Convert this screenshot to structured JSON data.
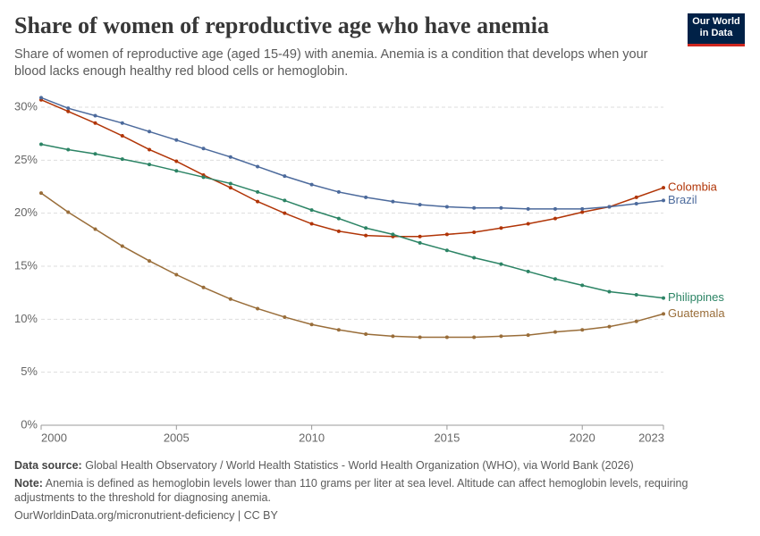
{
  "chart_data": {
    "type": "line",
    "title": "Share of women of reproductive age who have anemia",
    "subtitle": "Share of women of reproductive age (aged 15-49) with anemia. Anemia is a condition that develops when your blood lacks enough healthy red blood cells or hemoglobin.",
    "logo": [
      "Our World",
      "in Data"
    ],
    "x": [
      2000,
      2001,
      2002,
      2003,
      2004,
      2005,
      2006,
      2007,
      2008,
      2009,
      2010,
      2011,
      2012,
      2013,
      2014,
      2015,
      2016,
      2017,
      2018,
      2019,
      2020,
      2021,
      2022,
      2023
    ],
    "xlim": [
      2000,
      2023
    ],
    "xticks": [
      2000,
      2005,
      2010,
      2015,
      2020,
      2023
    ],
    "ylim": [
      0,
      30
    ],
    "yticks": [
      {
        "value": 0,
        "label": "0%"
      },
      {
        "value": 5,
        "label": "5%"
      },
      {
        "value": 10,
        "label": "10%"
      },
      {
        "value": 15,
        "label": "15%"
      },
      {
        "value": 20,
        "label": "20%"
      },
      {
        "value": 25,
        "label": "25%"
      },
      {
        "value": 30,
        "label": "30%"
      }
    ],
    "grid": true,
    "series": [
      {
        "name": "Colombia",
        "color": "#b13507",
        "values": [
          30.7,
          29.6,
          28.5,
          27.3,
          26.0,
          24.9,
          23.6,
          22.4,
          21.1,
          20.0,
          19.0,
          18.3,
          17.9,
          17.8,
          17.8,
          18.0,
          18.2,
          18.6,
          19.0,
          19.5,
          20.1,
          20.6,
          21.5,
          22.4
        ]
      },
      {
        "name": "Brazil",
        "color": "#4c6a9c",
        "values": [
          30.9,
          29.9,
          29.2,
          28.5,
          27.7,
          26.9,
          26.1,
          25.3,
          24.4,
          23.5,
          22.7,
          22.0,
          21.5,
          21.1,
          20.8,
          20.6,
          20.5,
          20.5,
          20.4,
          20.4,
          20.4,
          20.6,
          20.9,
          21.2
        ]
      },
      {
        "name": "Philippines",
        "color": "#2c8465",
        "values": [
          26.5,
          26.0,
          25.6,
          25.1,
          24.6,
          24.0,
          23.4,
          22.8,
          22.0,
          21.2,
          20.3,
          19.5,
          18.6,
          18.0,
          17.2,
          16.5,
          15.8,
          15.2,
          14.5,
          13.8,
          13.2,
          12.6,
          12.3,
          12.0
        ]
      },
      {
        "name": "Guatemala",
        "color": "#996d39",
        "values": [
          21.9,
          20.1,
          18.5,
          16.9,
          15.5,
          14.2,
          13.0,
          11.9,
          11.0,
          10.2,
          9.5,
          9.0,
          8.6,
          8.4,
          8.3,
          8.3,
          8.3,
          8.4,
          8.5,
          8.8,
          9.0,
          9.3,
          9.8,
          10.5
        ]
      }
    ],
    "source_label": "Data source:",
    "source": "Global Health Observatory / World Health Statistics - World Health Organization (WHO), via World Bank (2026)",
    "note_label": "Note:",
    "note": "Anemia is defined as hemoglobin levels lower than 110 grams per liter at sea level. Altitude can affect hemoglobin levels, requiring adjustments to the threshold for diagnosing anemia.",
    "footer": "OurWorldinData.org/micronutrient-deficiency | CC BY"
  }
}
